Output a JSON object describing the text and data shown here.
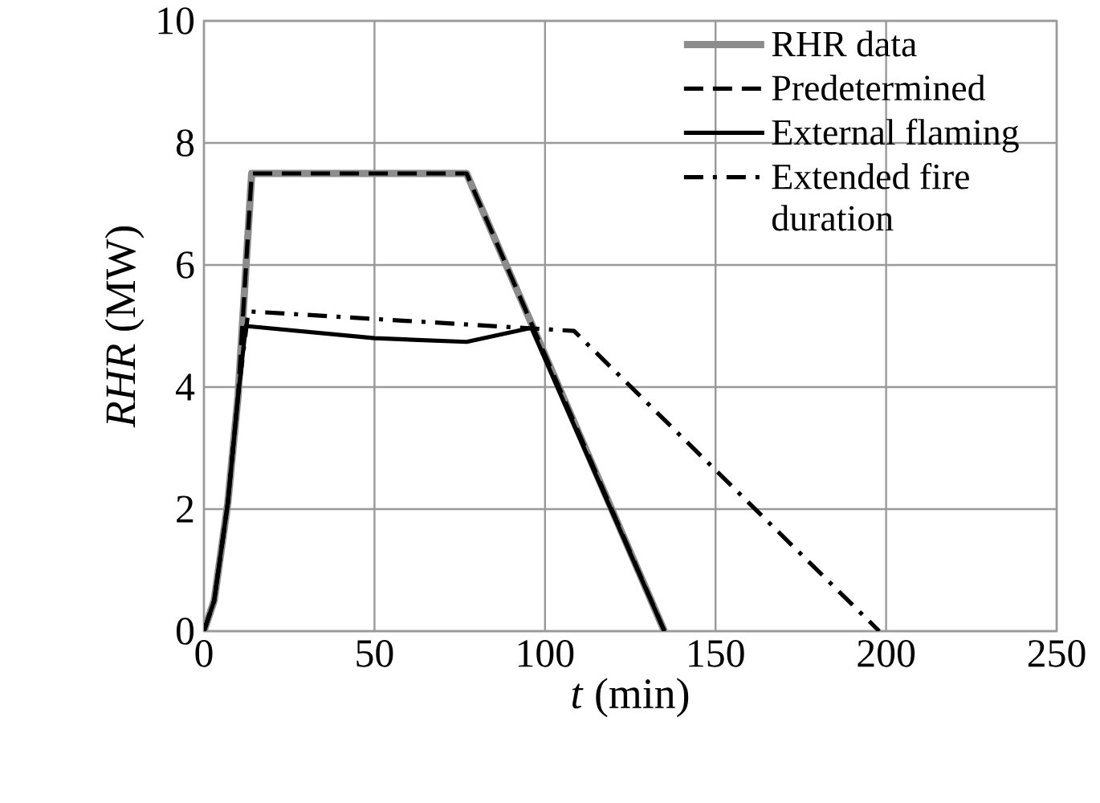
{
  "chart_data": {
    "type": "line",
    "xlabel": "*t* (min)",
    "ylabel": "*RHR* (MW)",
    "xlim": [
      0,
      250
    ],
    "xticks": [
      0,
      50,
      100,
      150,
      200,
      250
    ],
    "ylim": [
      0,
      10
    ],
    "yticks": [
      0,
      2,
      4,
      6,
      8,
      10
    ],
    "grid": true,
    "legend": "top right",
    "series": [
      {
        "name": "RHR data",
        "color": "#8c8c8c",
        "line_style": "solid",
        "x": [
          0,
          3,
          7,
          10,
          14,
          77,
          135
        ],
        "values": [
          0,
          0.5,
          2.1,
          3.85,
          7.5,
          7.5,
          0
        ]
      },
      {
        "name": "Predetermined",
        "color": "#000000",
        "line_style": "dashed",
        "x": [
          0,
          3,
          7,
          10,
          14,
          77,
          135
        ],
        "values": [
          0,
          0.5,
          2.1,
          3.85,
          7.5,
          7.5,
          0
        ]
      },
      {
        "name": "External flaming",
        "color": "#000000",
        "line_style": "solid",
        "x": [
          0,
          3,
          7,
          10,
          12.3,
          50,
          77,
          96,
          135
        ],
        "values": [
          0,
          0.5,
          2.1,
          3.85,
          5.0,
          4.8,
          4.74,
          4.97,
          0
        ]
      },
      {
        "name": "Extended fire duration",
        "color": "#000000",
        "line_style": "dashdot",
        "x": [
          0,
          3,
          7,
          10,
          13,
          108.5,
          198
        ],
        "values": [
          0,
          0.5,
          2.1,
          3.85,
          5.24,
          4.92,
          0
        ]
      }
    ]
  }
}
